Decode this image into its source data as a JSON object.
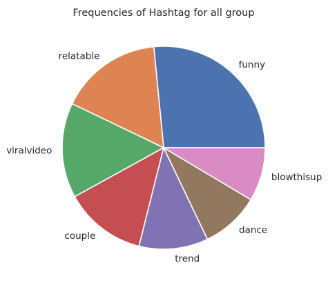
{
  "chart_data": {
    "type": "pie",
    "title": "Frequencies of Hashtag for all group",
    "start_angle_deg": 0,
    "direction": "counterclockwise",
    "slices": [
      {
        "label": "funny",
        "value": 27.0,
        "color": "#4c72b0"
      },
      {
        "label": "relatable",
        "value": 16.6,
        "color": "#dd8452"
      },
      {
        "label": "viralvideo",
        "value": 15.4,
        "color": "#55a868"
      },
      {
        "label": "couple",
        "value": 13.3,
        "color": "#c44e52"
      },
      {
        "label": "trend",
        "value": 11.2,
        "color": "#8172b3"
      },
      {
        "label": "dance",
        "value": 9.5,
        "color": "#937860"
      },
      {
        "label": "blowthisup",
        "value": 8.7,
        "color": "#da8bc3"
      }
    ]
  }
}
